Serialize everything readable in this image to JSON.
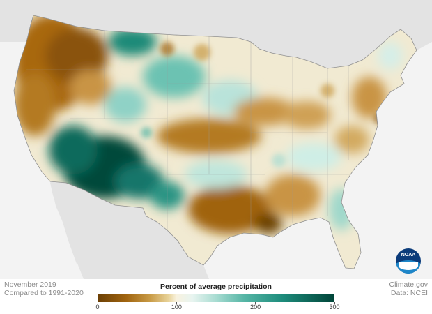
{
  "footer": {
    "date_line": "November 2019",
    "baseline_line": "Compared to 1991-2020",
    "credit_line": "Climate.gov",
    "data_line": "Data: NCEI"
  },
  "legend": {
    "title": "Percent of average precipitation",
    "ticks": [
      "0",
      "100",
      "200",
      "300"
    ],
    "tick_values": [
      0,
      100,
      200,
      300
    ],
    "min": 0,
    "max": 300,
    "colors": {
      "very_dry": "#6b3f05",
      "dry": "#c89a45",
      "normal": "#f8f2df",
      "wet": "#55b5a5",
      "very_wet": "#004438"
    }
  },
  "logo": {
    "text": "NOAA",
    "icon": "noaa-logo-icon"
  },
  "map": {
    "land_color": "#e3e3e3",
    "water_color": "#f3f3f3",
    "us_base_color": "#f1ead2"
  }
}
